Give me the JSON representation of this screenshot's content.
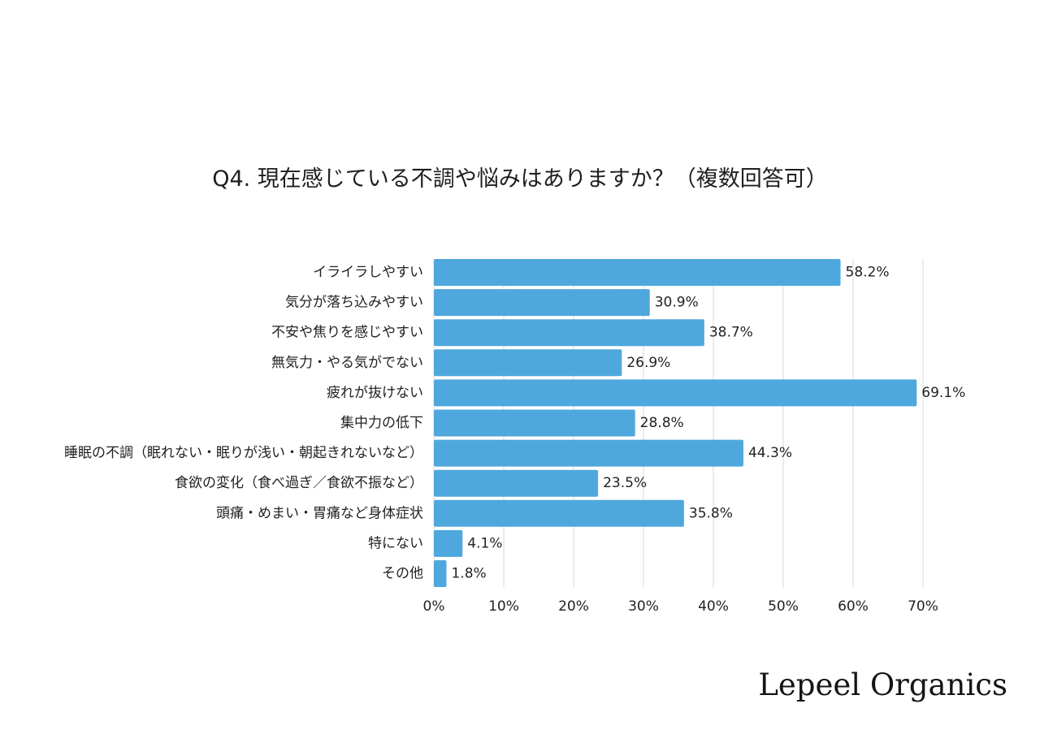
{
  "chart_data": {
    "type": "bar",
    "orientation": "horizontal",
    "title": "Q4. 現在感じている不調や悩みはありますか？（複数回答可）",
    "categories": [
      "イライラしやすい",
      "気分が落ち込みやすい",
      "不安や焦りを感じやすい",
      "無気力・やる気がでない",
      "疲れが抜けない",
      "集中力の低下",
      "睡眠の不調（眠れない・眠りが浅い・朝起きれないなど）",
      "食欲の変化（食べ過ぎ／食欲不振など）",
      "頭痛・めまい・胃痛など身体症状",
      "特にない",
      "その他"
    ],
    "values": [
      58.2,
      30.9,
      38.7,
      26.9,
      69.1,
      28.8,
      44.3,
      23.5,
      35.8,
      4.1,
      1.8
    ],
    "value_labels": [
      "58.2%",
      "30.9%",
      "38.7%",
      "26.9%",
      "69.1%",
      "28.8%",
      "44.3%",
      "23.5%",
      "35.8%",
      "4.1%",
      "1.8%"
    ],
    "xticks": [
      0,
      10,
      20,
      30,
      40,
      50,
      60,
      70
    ],
    "xtick_labels": [
      "0%",
      "10%",
      "20%",
      "30%",
      "40%",
      "50%",
      "60%",
      "70%"
    ],
    "xlim": [
      0,
      70
    ],
    "unit": "%",
    "grid": "vertical",
    "legend": "none",
    "bar_color": "#4fa8dd",
    "grid_color": "#d9d9d9"
  },
  "brand": {
    "name": "Lepeel Organics"
  }
}
